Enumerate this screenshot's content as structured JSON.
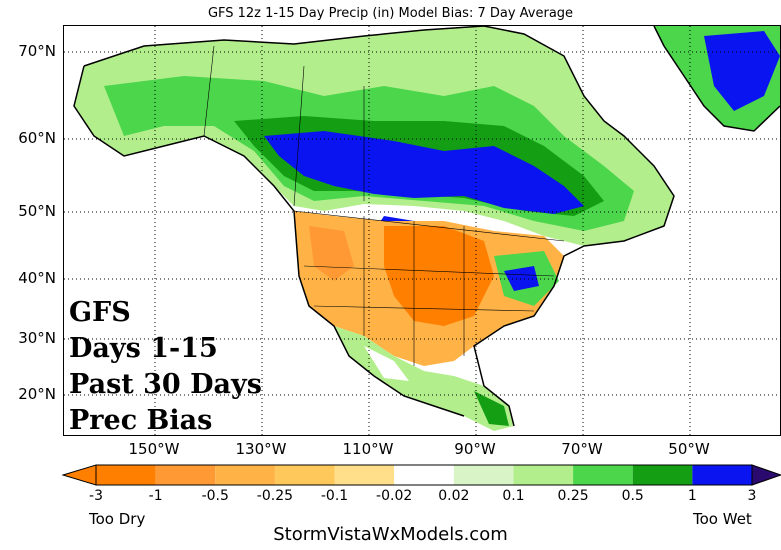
{
  "title": "GFS 12z 1-15 Day Precip (in) Model Bias: 7 Day Average",
  "lat_labels": [
    "70°N",
    "60°N",
    "50°N",
    "40°N",
    "30°N",
    "20°N"
  ],
  "lon_labels": [
    "150°W",
    "130°W",
    "110°W",
    "90°W",
    "70°W",
    "50°W"
  ],
  "overlay_lines": [
    "GFS",
    "Days 1-15",
    "Past 30 Days",
    "Prec Bias"
  ],
  "colorbar": {
    "ticks": [
      "-3",
      "-1",
      "-0.5",
      "-0.25",
      "-0.1",
      "-0.02",
      "0.02",
      "0.1",
      "0.25",
      "0.5",
      "1",
      "3"
    ],
    "colors": [
      "#ff7f00",
      "#ff9933",
      "#ffb347",
      "#ffc85a",
      "#ffdf8a",
      "#ffffff",
      "#d9f5c8",
      "#b3ee8c",
      "#4cd64c",
      "#139e13",
      "#0a14f0"
    ],
    "under_color": "#ff7f00",
    "over_color": "#2a0a6e",
    "left_label": "Too Dry",
    "right_label": "Too Wet"
  },
  "footer": "StormVistaWxModels.com"
}
